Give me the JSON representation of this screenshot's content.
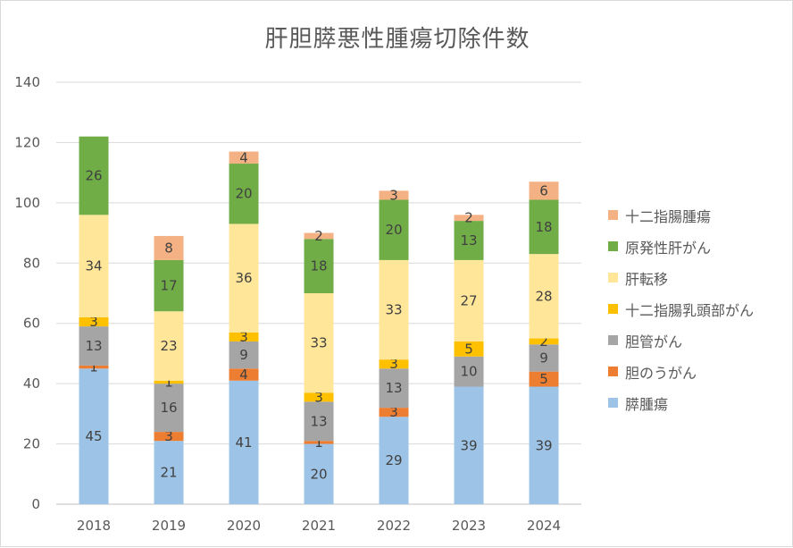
{
  "chart_data": {
    "type": "bar",
    "stacked": true,
    "title": "肝胆膵悪性腫瘍切除件数",
    "xlabel": "",
    "ylabel": "",
    "categories": [
      "2018",
      "2019",
      "2020",
      "2021",
      "2022",
      "2023",
      "2024"
    ],
    "ylim": [
      0,
      140
    ],
    "yticks": [
      0,
      20,
      40,
      60,
      80,
      100,
      120,
      140
    ],
    "grid": true,
    "legend_position": "right",
    "series": [
      {
        "name": "膵腫瘍",
        "color": "#9dc3e6",
        "values": [
          45,
          21,
          41,
          20,
          29,
          39,
          39
        ]
      },
      {
        "name": "胆のうがん",
        "color": "#ed7d31",
        "values": [
          1,
          3,
          4,
          1,
          3,
          0,
          5
        ]
      },
      {
        "name": "胆管がん",
        "color": "#a5a5a5",
        "values": [
          13,
          16,
          9,
          13,
          13,
          10,
          9
        ]
      },
      {
        "name": "十二指腸乳頭部がん",
        "color": "#ffc000",
        "values": [
          3,
          1,
          3,
          3,
          3,
          5,
          2
        ]
      },
      {
        "name": "肝転移",
        "color": "#ffe699",
        "values": [
          34,
          23,
          36,
          33,
          33,
          27,
          28
        ]
      },
      {
        "name": "原発性肝がん",
        "color": "#70ad47",
        "values": [
          26,
          17,
          20,
          18,
          20,
          13,
          18
        ]
      },
      {
        "name": "十二指腸腫瘍",
        "color": "#f4b183",
        "values": [
          0,
          8,
          4,
          2,
          3,
          2,
          6
        ]
      }
    ]
  }
}
